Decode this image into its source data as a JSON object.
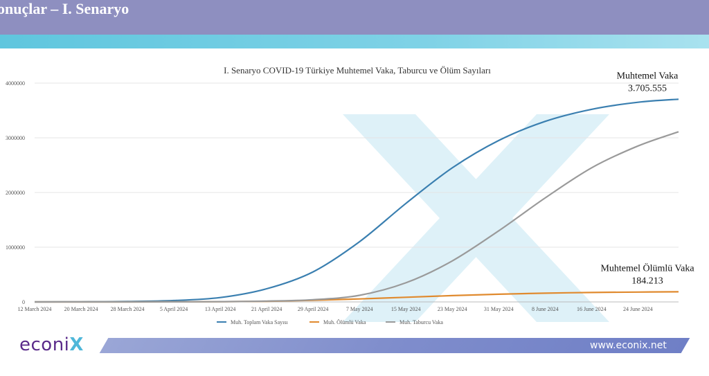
{
  "header": {
    "title": "onuçlar – I. Senaryo"
  },
  "footer": {
    "logo": "econi",
    "logo_mark": "X",
    "url": "www.econix.net"
  },
  "colors": {
    "header": "#8e8fc0",
    "stripe": "#6ccbe2",
    "vaka": "#3a7fb0",
    "olumlu": "#e08a2e",
    "taburcu": "#9a9a9a"
  },
  "chart_data": {
    "type": "line",
    "title": "I. Senaryo COVID-19 Türkiye Muhtemel Vaka, Taburcu ve Ölüm  Sayıları",
    "xlabel": "",
    "ylabel": "",
    "ylim": [
      0,
      4000000
    ],
    "y_ticks": [
      0,
      1000000,
      2000000,
      3000000,
      4000000
    ],
    "y_tick_labels": [
      "0",
      "1000000",
      "2000000",
      "3000000",
      "4000000"
    ],
    "x_tick_labels": [
      "12 March 2024",
      "20 March 2024",
      "28 March 2024",
      "5 April 2024",
      "13 April 2024",
      "21 April 2024",
      "29 April 2024",
      "7 May 2024",
      "15 May 2024",
      "23 May 2024",
      "31 May 2024",
      "8 June 2024",
      "16 June 2024",
      "24 June 2024"
    ],
    "x_day_range": [
      0,
      111
    ],
    "grid": true,
    "legend_position": "bottom",
    "series": [
      {
        "name": "Muh. Toplam Vaka Sayısı",
        "color": "#3a7fb0",
        "x": [
          0,
          8,
          16,
          24,
          32,
          40,
          48,
          56,
          64,
          72,
          80,
          88,
          96,
          104,
          111
        ],
        "y": [
          0,
          2000,
          8000,
          25000,
          80000,
          240000,
          550000,
          1100000,
          1800000,
          2450000,
          2950000,
          3300000,
          3520000,
          3650000,
          3705555
        ]
      },
      {
        "name": "Muh. Ölümlü Vaka",
        "color": "#e08a2e",
        "x": [
          0,
          8,
          16,
          24,
          32,
          40,
          48,
          56,
          64,
          72,
          80,
          88,
          96,
          104,
          111
        ],
        "y": [
          0,
          0,
          200,
          1000,
          4000,
          12000,
          30000,
          55000,
          85000,
          115000,
          140000,
          160000,
          172000,
          180000,
          184213
        ]
      },
      {
        "name": "Muh. Taburcu Vaka",
        "color": "#9a9a9a",
        "x": [
          0,
          8,
          16,
          24,
          32,
          40,
          48,
          56,
          64,
          72,
          80,
          88,
          96,
          104,
          111
        ],
        "y": [
          0,
          0,
          0,
          1000,
          5000,
          15000,
          40000,
          120000,
          350000,
          750000,
          1300000,
          1900000,
          2450000,
          2850000,
          3110000
        ]
      }
    ],
    "annotations": [
      {
        "series": 0,
        "line1": "Muhtemel Vaka",
        "line2": "3.705.555"
      },
      {
        "series": 1,
        "line1": "Muhtemel Ölümlü Vaka",
        "line2": "184.213"
      }
    ]
  }
}
